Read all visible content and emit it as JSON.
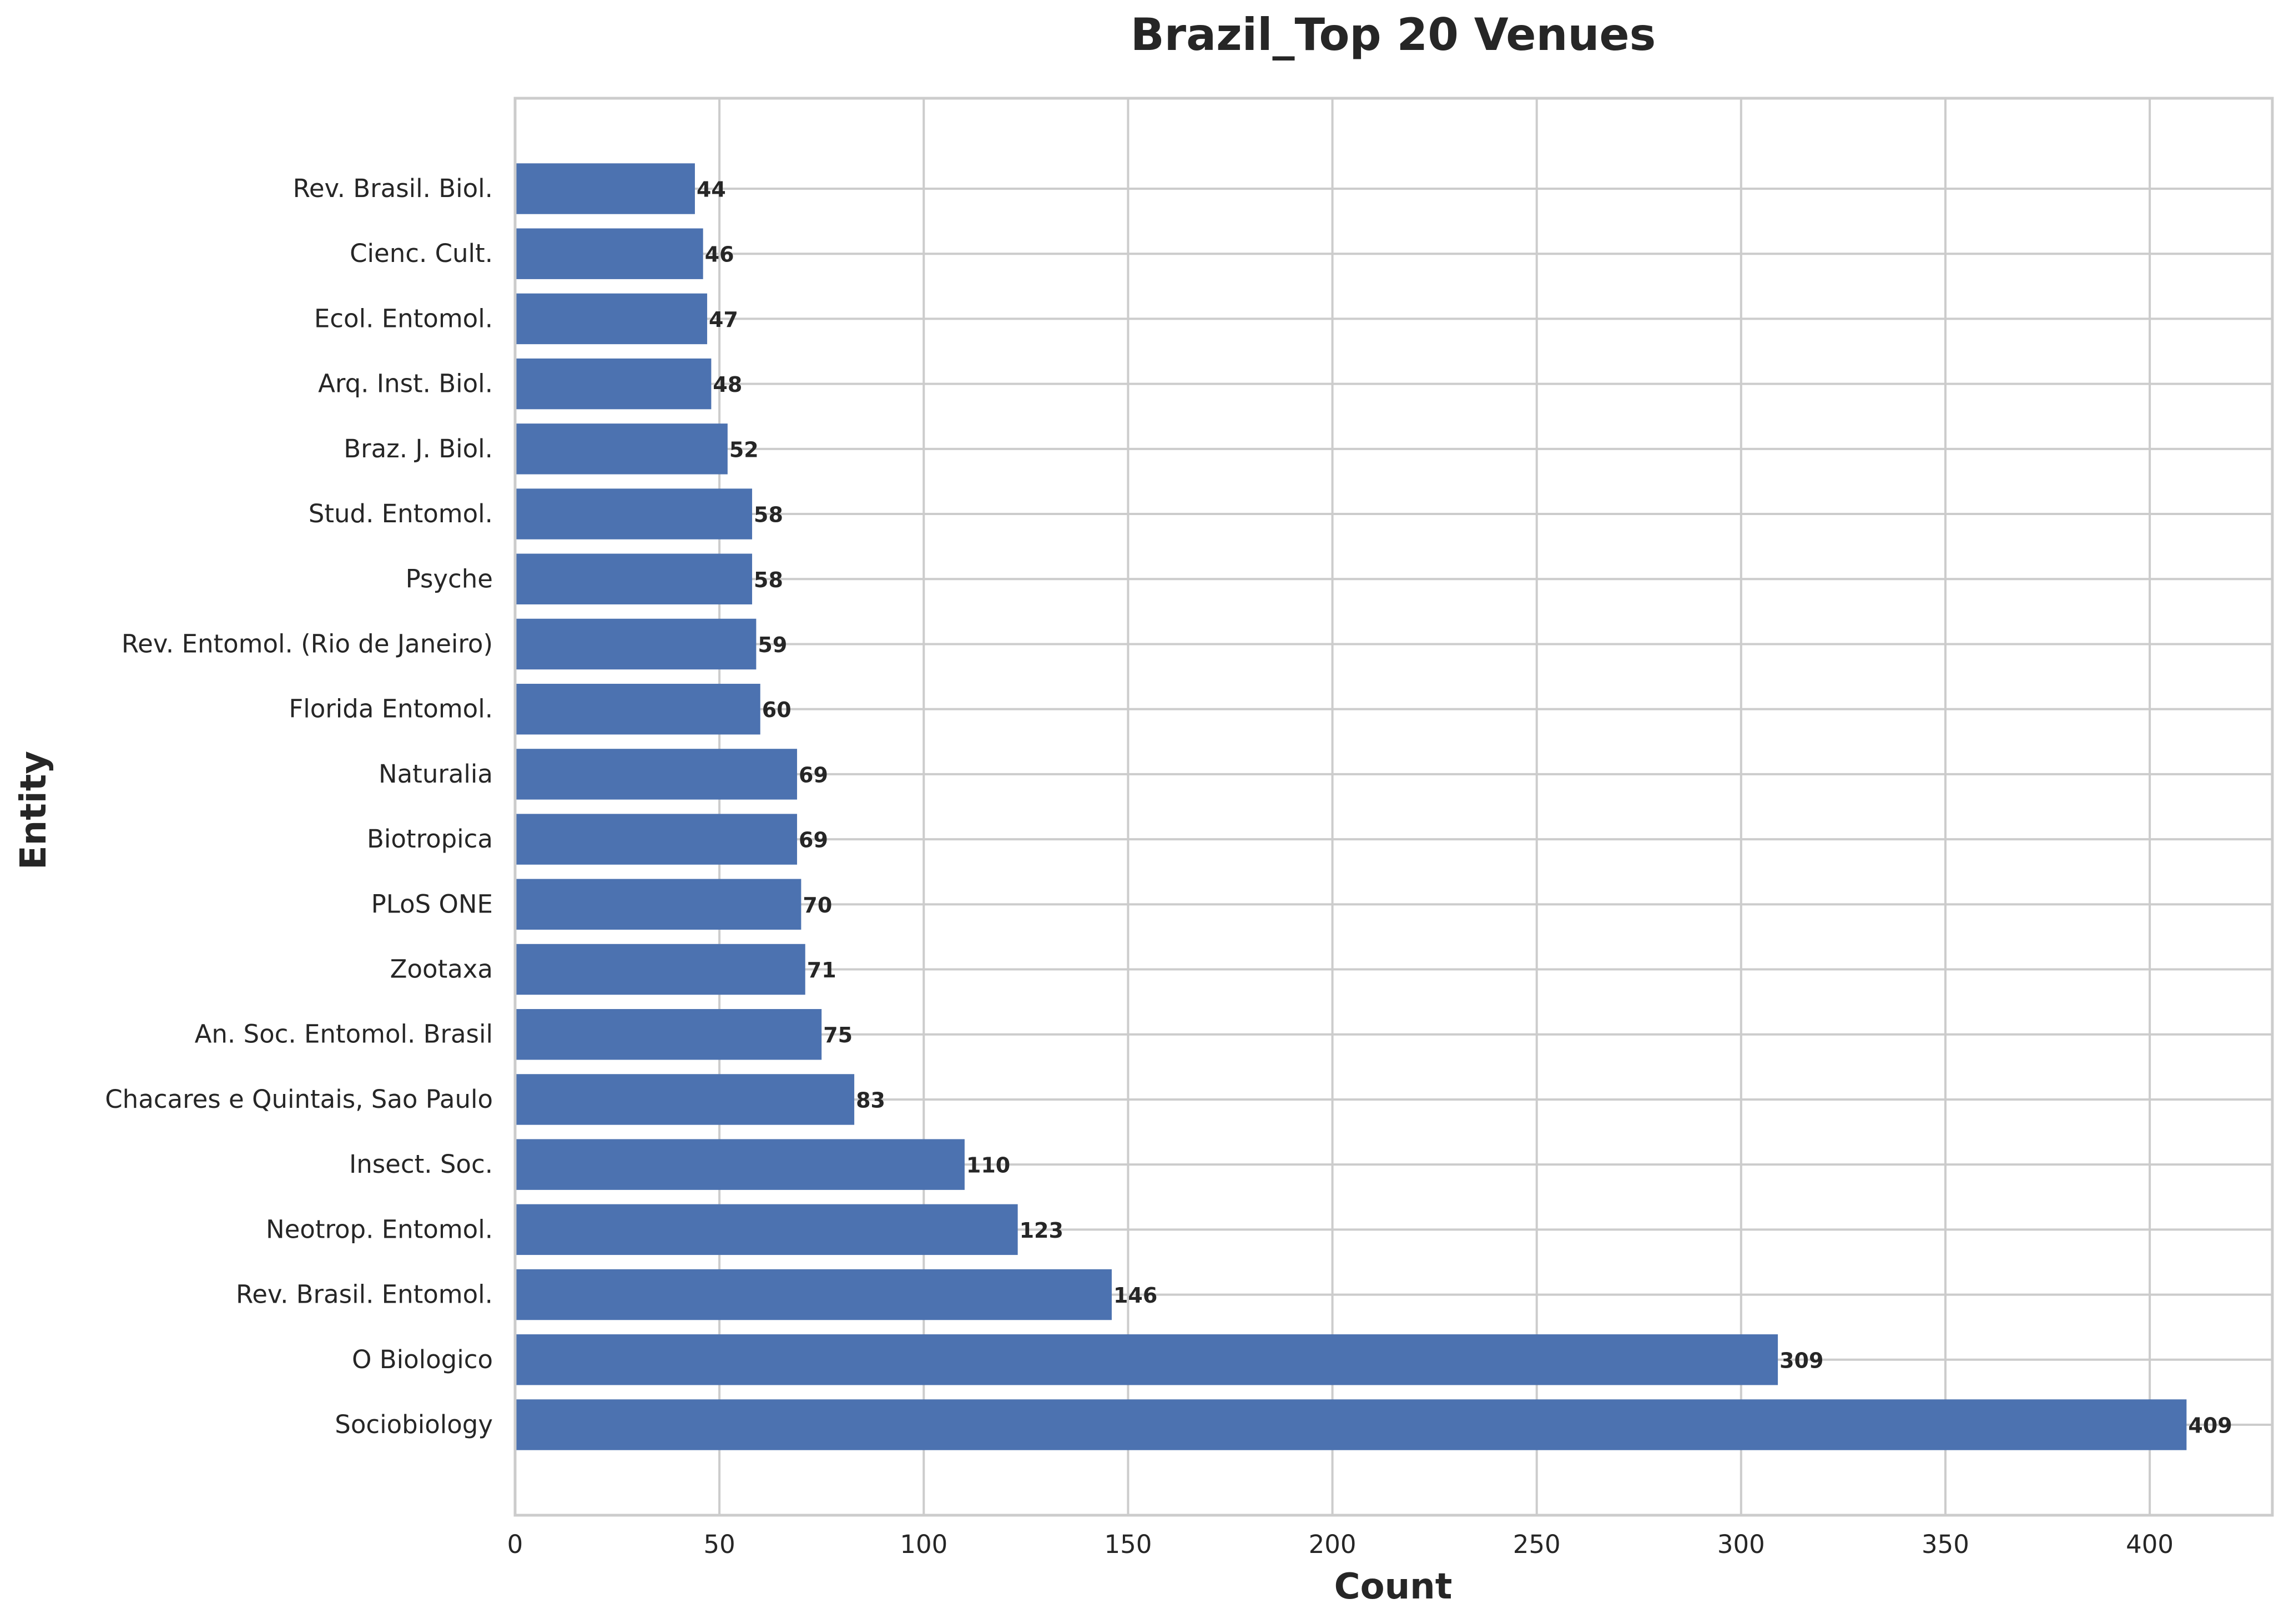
{
  "chart_data": {
    "type": "bar",
    "orientation": "horizontal",
    "title": "Brazil_Top 20 Venues",
    "xlabel": "Count",
    "ylabel": "Entity",
    "xlim": [
      0,
      430
    ],
    "xticks": [
      0,
      50,
      100,
      150,
      200,
      250,
      300,
      350,
      400
    ],
    "grid": true,
    "bar_color": "#4c72b0",
    "categories": [
      "Rev. Brasil. Biol.",
      "Cienc. Cult.",
      "Ecol. Entomol.",
      "Arq. Inst. Biol.",
      "Braz. J. Biol.",
      "Stud. Entomol.",
      "Psyche",
      "Rev. Entomol. (Rio de Janeiro)",
      "Florida Entomol.",
      "Naturalia",
      "Biotropica",
      "PLoS ONE",
      "Zootaxa",
      "An. Soc. Entomol. Brasil",
      "Chacares e Quintais, Sao Paulo",
      "Insect. Soc.",
      "Neotrop. Entomol.",
      "Rev. Brasil. Entomol.",
      "O Biologico",
      "Sociobiology"
    ],
    "values": [
      44,
      46,
      47,
      48,
      52,
      58,
      58,
      59,
      60,
      69,
      69,
      70,
      71,
      75,
      83,
      110,
      123,
      146,
      309,
      409
    ]
  }
}
